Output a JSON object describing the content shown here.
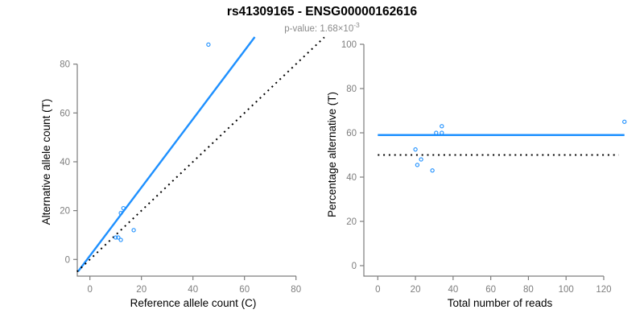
{
  "header": {
    "title": "rs41309165 - ENSG00000162616",
    "pvalue_label": "p-value: 1.68×10",
    "pvalue_exponent": "-3"
  },
  "colors": {
    "point_blue": "#1E90FF",
    "line_blue": "#1E90FF",
    "reference_black": "#000000",
    "axis_gray": "#7d7d7d",
    "axis_title_black": "#000000",
    "subtitle_gray": "#8a8a8a"
  },
  "chart_data": [
    {
      "type": "scatter",
      "xlabel": "Reference allele count (C)",
      "ylabel": "Alternative allele count (T)",
      "xlim": [
        0,
        80
      ],
      "ylim": [
        0,
        80
      ],
      "xticks": [
        0,
        20,
        40,
        60,
        80
      ],
      "yticks": [
        0,
        20,
        40,
        60,
        80
      ],
      "grid": false,
      "points": [
        [
          46,
          88
        ],
        [
          13,
          21
        ],
        [
          12,
          19
        ],
        [
          17,
          12
        ],
        [
          10,
          9
        ],
        [
          11,
          9
        ],
        [
          12,
          8
        ]
      ],
      "lines": [
        {
          "name": "regression-line",
          "slope": 1.4,
          "intercept": 1.5,
          "x1": -4.6,
          "x2": 64,
          "color": "#1E90FF",
          "dashed": false
        },
        {
          "name": "identity-line",
          "slope": 1,
          "intercept": 0,
          "x1": -5,
          "x2": 91,
          "color": "#000000",
          "dashed": true
        }
      ]
    },
    {
      "type": "scatter",
      "xlabel": "Total number of reads",
      "ylabel": "Percentage alternative (T)",
      "xlim": [
        0,
        132
      ],
      "ylim": [
        0,
        100
      ],
      "xticks": [
        0,
        20,
        40,
        60,
        80,
        100,
        120
      ],
      "yticks": [
        0,
        20,
        40,
        60,
        80,
        100
      ],
      "grid": false,
      "points": [
        [
          34,
          63
        ],
        [
          31,
          60
        ],
        [
          34,
          60
        ],
        [
          20,
          52.5
        ],
        [
          23,
          48
        ],
        [
          21,
          45.5
        ],
        [
          29,
          43
        ],
        [
          131,
          65
        ]
      ],
      "lines": [
        {
          "name": "mean-percentage-line",
          "slope": 0,
          "intercept": 59,
          "x1": 0,
          "x2": 131,
          "color": "#1E90FF",
          "dashed": false
        },
        {
          "name": "fifty-percent-line",
          "slope": 0,
          "intercept": 50,
          "x1": 0,
          "x2": 128,
          "color": "#000000",
          "dashed": true
        }
      ]
    }
  ]
}
